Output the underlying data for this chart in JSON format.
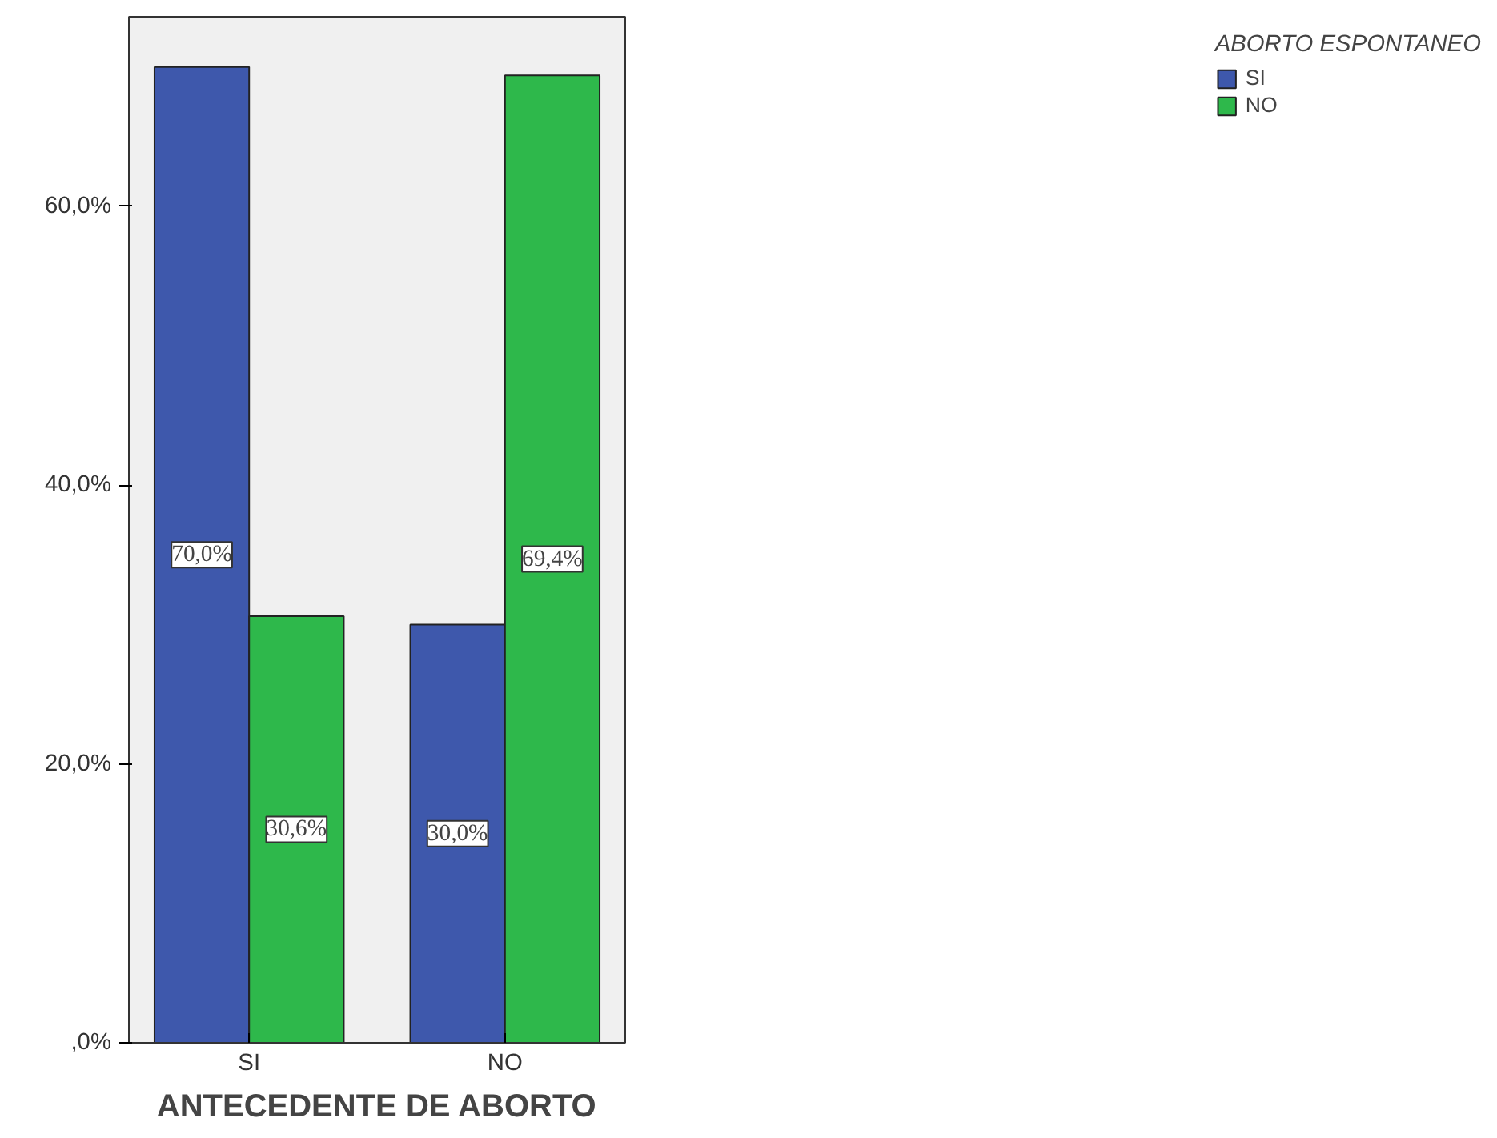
{
  "chart_data": {
    "type": "bar",
    "xlabel": "ANTECEDENTE DE ABORTO",
    "legend_title": "ABORTO ESPONTANEO",
    "categories": [
      "SI",
      "NO"
    ],
    "series": [
      {
        "name": "SI",
        "color": "#3e58ac",
        "values": [
          70.0,
          30.0
        ],
        "value_labels": [
          "70,0%",
          "30,0%"
        ]
      },
      {
        "name": "NO",
        "color": "#2eb84b",
        "values": [
          30.6,
          69.4
        ],
        "value_labels": [
          "30,6%",
          "69,4%"
        ]
      }
    ],
    "ylim": [
      0,
      73.6
    ],
    "yticks": [
      {
        "value": 0,
        "label": ",0%"
      },
      {
        "value": 20,
        "label": "20,0%"
      },
      {
        "value": 40,
        "label": "40,0%"
      },
      {
        "value": 60,
        "label": "60,0%"
      }
    ],
    "grid": false,
    "legend": "top right"
  }
}
